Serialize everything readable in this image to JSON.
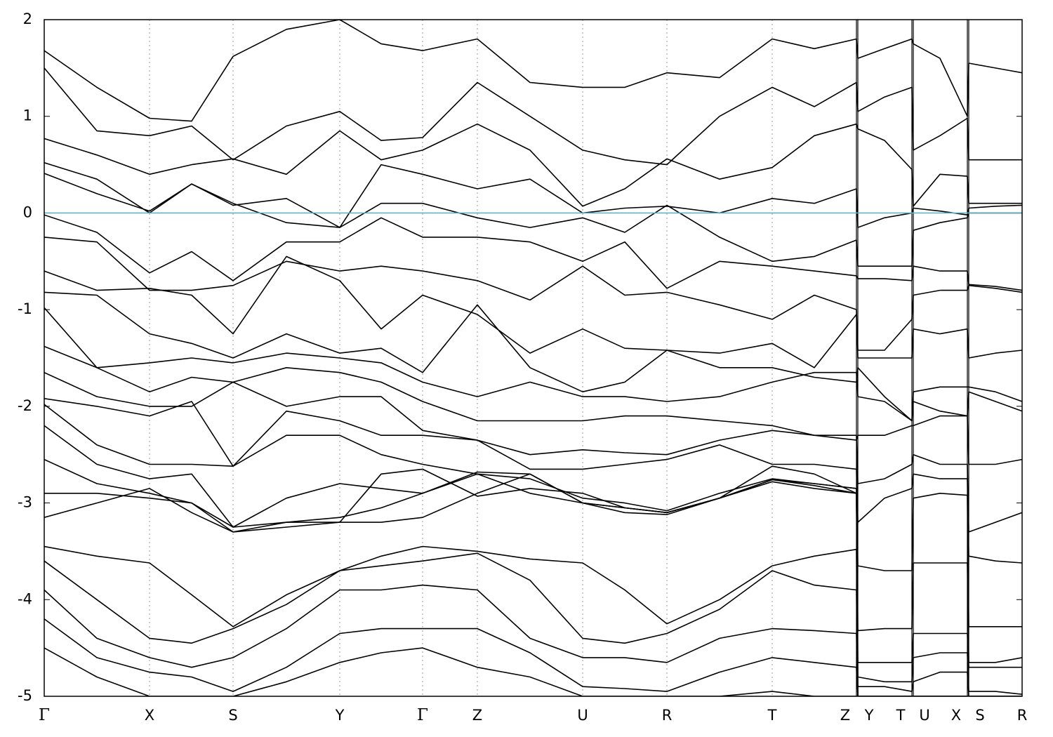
{
  "chart_data": {
    "type": "line",
    "x": [
      0,
      75,
      150,
      210,
      269,
      345,
      421,
      480,
      539,
      617,
      692,
      767,
      827,
      887,
      962,
      1037,
      1097,
      1157,
      1159,
      1197,
      1236,
      1238,
      1276,
      1315,
      1317,
      1355,
      1393
    ],
    "xlim": [
      0,
      1393
    ],
    "xticks": [
      {
        "value": 0,
        "label": "Γ"
      },
      {
        "value": 150,
        "label": "X"
      },
      {
        "value": 269,
        "label": "S"
      },
      {
        "value": 421,
        "label": "Y"
      },
      {
        "value": 539,
        "label": "Γ"
      },
      {
        "value": 617,
        "label": "Z"
      },
      {
        "value": 767,
        "label": "U"
      },
      {
        "value": 887,
        "label": "R"
      },
      {
        "value": 1037,
        "label": "T"
      },
      {
        "value": 1157,
        "label": "Z"
      },
      {
        "value": 1159,
        "label": "Y"
      },
      {
        "value": 1236,
        "label": "T"
      },
      {
        "value": 1238,
        "label": "U"
      },
      {
        "value": 1315,
        "label": "X"
      },
      {
        "value": 1317,
        "label": "S"
      },
      {
        "value": 1393,
        "label": "R"
      }
    ],
    "ylim": [
      -5,
      2
    ],
    "yticks": [
      -5,
      -4,
      -3,
      -2,
      -1,
      0,
      1,
      2
    ],
    "color": "#000000",
    "fermi_line": {
      "value": 0,
      "color": "#5fb3c8"
    },
    "grid": true,
    "series": [
      {
        "values": [
          1.68,
          1.3,
          0.98,
          0.95,
          1.62,
          1.9,
          2.0,
          1.75,
          1.68,
          1.8,
          1.35,
          1.3,
          1.3,
          1.45,
          1.4,
          1.8,
          1.7,
          1.8,
          1.6,
          1.7,
          1.8,
          1.75,
          1.6,
          1.0,
          1.55,
          1.5,
          1.45
        ]
      },
      {
        "values": [
          1.5,
          0.85,
          0.8,
          0.9,
          0.55,
          0.9,
          1.05,
          0.75,
          0.78,
          1.35,
          1.0,
          0.65,
          0.55,
          0.5,
          1.0,
          1.3,
          1.1,
          1.35,
          1.05,
          1.2,
          1.3,
          0.65,
          0.8,
          0.98,
          0.55,
          0.55,
          0.55
        ]
      },
      {
        "values": [
          0.77,
          0.6,
          0.4,
          0.5,
          0.56,
          0.4,
          0.85,
          0.55,
          0.65,
          0.92,
          0.65,
          0.07,
          0.25,
          0.56,
          0.35,
          0.47,
          0.8,
          0.92,
          0.87,
          0.75,
          0.45,
          0.07,
          0.4,
          0.38,
          0.1,
          0.1,
          0.1
        ]
      },
      {
        "values": [
          0.52,
          0.35,
          0.0,
          0.3,
          0.1,
          -0.1,
          -0.15,
          0.5,
          0.4,
          0.25,
          0.35,
          0.0,
          0.05,
          0.07,
          0.0,
          0.15,
          0.1,
          0.25,
          -0.15,
          -0.05,
          0.0,
          0.05,
          0.02,
          -0.02,
          0.05,
          0.07,
          0.08
        ]
      },
      {
        "values": [
          0.41,
          0.2,
          0.02,
          0.3,
          0.08,
          0.15,
          -0.15,
          0.1,
          0.1,
          -0.05,
          -0.15,
          -0.05,
          -0.2,
          0.08,
          -0.25,
          -0.5,
          -0.45,
          -0.28,
          -0.55,
          -0.55,
          -0.55,
          -0.18,
          -0.1,
          -0.05,
          0.0,
          0.0,
          0.0
        ]
      },
      {
        "values": [
          -0.02,
          -0.2,
          -0.62,
          -0.4,
          -0.7,
          -0.3,
          -0.3,
          -0.05,
          -0.25,
          -0.25,
          -0.3,
          -0.5,
          -0.3,
          -0.78,
          -0.5,
          -0.55,
          -0.6,
          -0.65,
          -0.68,
          -0.68,
          -0.7,
          -0.55,
          -0.6,
          -0.6,
          -0.74,
          -0.76,
          -0.8
        ]
      },
      {
        "values": [
          -0.25,
          -0.3,
          -0.8,
          -0.8,
          -0.75,
          -0.5,
          -0.6,
          -0.55,
          -0.6,
          -0.7,
          -0.9,
          -0.55,
          -0.85,
          -0.82,
          -0.95,
          -1.1,
          -0.85,
          -1.0,
          -1.42,
          -1.42,
          -1.1,
          -0.85,
          -0.8,
          -0.8,
          -0.75,
          -0.78,
          -0.82
        ]
      },
      {
        "values": [
          -0.6,
          -0.8,
          -0.78,
          -0.85,
          -1.25,
          -0.45,
          -0.7,
          -1.2,
          -0.85,
          -1.05,
          -1.45,
          -1.2,
          -1.4,
          -1.42,
          -1.45,
          -1.35,
          -1.6,
          -1.05,
          -1.5,
          -1.5,
          -1.5,
          -1.2,
          -1.25,
          -1.2,
          -1.5,
          -1.45,
          -1.42
        ]
      },
      {
        "values": [
          -0.82,
          -0.85,
          -1.25,
          -1.35,
          -1.5,
          -1.25,
          -1.45,
          -1.4,
          -1.65,
          -0.95,
          -1.6,
          -1.85,
          -1.75,
          -1.42,
          -1.6,
          -1.6,
          -1.7,
          -1.75,
          -1.6,
          -1.9,
          -2.15,
          -1.85,
          -1.8,
          -1.8,
          -1.8,
          -1.85,
          -1.95
        ]
      },
      {
        "values": [
          -0.98,
          -1.6,
          -1.55,
          -1.5,
          -1.55,
          -1.45,
          -1.5,
          -1.55,
          -1.75,
          -1.9,
          -1.75,
          -1.9,
          -1.9,
          -1.95,
          -1.9,
          -1.75,
          -1.65,
          -1.65,
          -1.9,
          -1.95,
          -2.15,
          -1.95,
          -2.05,
          -2.1,
          -1.85,
          -1.95,
          -2.05
        ]
      },
      {
        "values": [
          -1.38,
          -1.6,
          -1.85,
          -1.7,
          -1.75,
          -1.6,
          -1.65,
          -1.75,
          -1.95,
          -2.15,
          -2.15,
          -2.15,
          -2.1,
          -2.1,
          -2.15,
          -2.2,
          -2.3,
          -2.35,
          -2.3,
          -2.3,
          -2.2,
          -2.2,
          -2.1,
          -2.1,
          -2.6,
          -2.6,
          -2.55
        ]
      },
      {
        "values": [
          -1.65,
          -1.9,
          -2.0,
          -2.0,
          -1.75,
          -2.0,
          -1.9,
          -1.9,
          -2.25,
          -2.35,
          -2.5,
          -2.45,
          -2.48,
          -2.5,
          -2.35,
          -2.25,
          -2.3,
          -2.3,
          -2.8,
          -2.75,
          -2.6,
          -2.5,
          -2.6,
          -2.6,
          -3.3,
          -3.2,
          -3.1
        ]
      },
      {
        "values": [
          -1.92,
          -2.0,
          -2.1,
          -1.95,
          -2.62,
          -2.05,
          -2.15,
          -2.3,
          -2.3,
          -2.35,
          -2.65,
          -2.65,
          -2.6,
          -2.55,
          -2.4,
          -2.6,
          -2.6,
          -2.65,
          -3.2,
          -2.95,
          -2.85,
          -2.7,
          -2.75,
          -2.75,
          -3.55,
          -3.6,
          -3.62
        ]
      },
      {
        "values": [
          -1.98,
          -2.4,
          -2.6,
          -2.6,
          -2.62,
          -2.3,
          -2.3,
          -2.5,
          -2.6,
          -2.7,
          -2.75,
          -2.95,
          -3.0,
          -3.08,
          -2.9,
          -2.75,
          -2.8,
          -2.85,
          -3.65,
          -3.7,
          -3.7,
          -2.95,
          -2.9,
          -2.92,
          -4.28,
          -4.28,
          -4.28
        ]
      },
      {
        "values": [
          -2.2,
          -2.6,
          -2.75,
          -2.7,
          -3.25,
          -2.95,
          -2.8,
          -2.85,
          -2.9,
          -2.68,
          -2.7,
          -3.0,
          -3.05,
          -3.1,
          -2.95,
          -2.62,
          -2.7,
          -2.9,
          -4.32,
          -4.3,
          -4.3,
          -3.62,
          -3.62,
          -3.62,
          -4.65,
          -4.65,
          -4.6
        ]
      },
      {
        "values": [
          -2.55,
          -2.8,
          -2.9,
          -3.0,
          -3.3,
          -3.2,
          -3.2,
          -2.7,
          -2.65,
          -2.93,
          -2.85,
          -2.9,
          -3.05,
          -3.1,
          -2.95,
          -2.76,
          -2.82,
          -2.9,
          -4.65,
          -4.65,
          -4.65,
          -4.35,
          -4.35,
          -4.35,
          -4.7,
          -4.7,
          -4.7
        ]
      },
      {
        "values": [
          -2.9,
          -2.9,
          -2.95,
          -3.0,
          -3.25,
          -3.2,
          -3.15,
          -3.05,
          -2.9,
          -2.7,
          -2.9,
          -3.0,
          -3.05,
          -3.1,
          -2.95,
          -2.78,
          -2.85,
          -2.9,
          -4.8,
          -4.85,
          -4.85,
          -4.6,
          -4.55,
          -4.55,
          -4.95,
          -4.95,
          -4.98
        ]
      },
      {
        "values": [
          -3.15,
          -3.0,
          -2.85,
          -3.1,
          -3.3,
          -3.25,
          -3.2,
          -3.2,
          -3.15,
          -2.9,
          -2.7,
          -3.0,
          -3.1,
          -3.12,
          -2.95,
          -2.76,
          -2.8,
          -2.85,
          -4.9,
          -4.9,
          -4.95,
          -4.85,
          -4.75,
          -4.75,
          -5.0,
          -5.0,
          -5.0
        ]
      },
      {
        "values": [
          -3.45,
          -3.55,
          -3.62,
          -3.95,
          -4.28,
          -3.95,
          -3.7,
          -3.55,
          -3.45,
          -3.5,
          -3.58,
          -3.62,
          -3.9,
          -4.25,
          -4.0,
          -3.65,
          -3.55,
          -3.48,
          -5.0,
          -5.0,
          -5.0,
          -5.0,
          -5.0,
          -5.0,
          -5.0,
          -5.0,
          -5.0
        ]
      },
      {
        "values": [
          -3.6,
          -4.0,
          -4.4,
          -4.45,
          -4.3,
          -4.05,
          -3.7,
          -3.65,
          -3.6,
          -3.52,
          -3.8,
          -4.4,
          -4.45,
          -4.35,
          -4.1,
          -3.7,
          -3.85,
          -3.9,
          -5.0,
          -5.0,
          -5.0,
          -5.0,
          -5.0,
          -5.0,
          -5.0,
          -5.0,
          -5.0
        ]
      },
      {
        "values": [
          -3.9,
          -4.4,
          -4.6,
          -4.7,
          -4.6,
          -4.3,
          -3.9,
          -3.9,
          -3.85,
          -3.9,
          -4.4,
          -4.6,
          -4.6,
          -4.65,
          -4.4,
          -4.3,
          -4.32,
          -4.35,
          -5.0,
          -5.0,
          -5.0,
          -5.0,
          -5.0,
          -5.0,
          -5.0,
          -5.0,
          -5.0
        ]
      },
      {
        "values": [
          -4.2,
          -4.6,
          -4.75,
          -4.8,
          -4.95,
          -4.7,
          -4.35,
          -4.3,
          -4.3,
          -4.3,
          -4.55,
          -4.9,
          -4.92,
          -4.95,
          -4.75,
          -4.6,
          -4.65,
          -4.7,
          -5.0,
          -5.0,
          -5.0,
          -5.0,
          -5.0,
          -5.0,
          -5.0,
          -5.0,
          -5.0
        ]
      },
      {
        "values": [
          -4.5,
          -4.8,
          -5.0,
          -5.0,
          -5.0,
          -4.85,
          -4.65,
          -4.55,
          -4.5,
          -4.7,
          -4.8,
          -5.0,
          -5.0,
          -5.0,
          -5.0,
          -4.95,
          -5.0,
          -5.0,
          -5.0,
          -5.0,
          -5.0,
          -5.0,
          -5.0,
          -5.0,
          -5.0,
          -5.0,
          -5.0
        ]
      }
    ]
  }
}
